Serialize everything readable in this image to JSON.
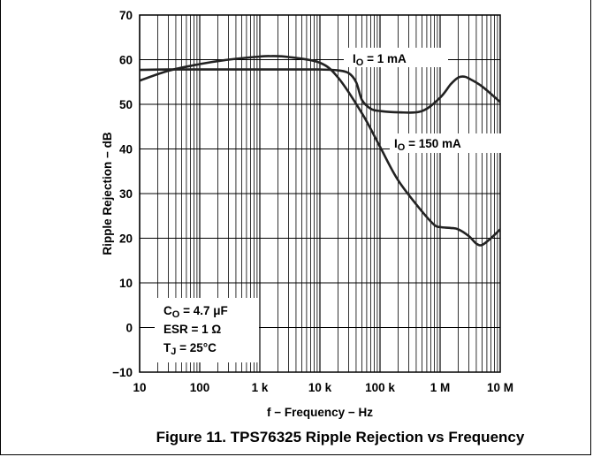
{
  "chart_data": {
    "type": "line",
    "title": "Figure 11. TPS76325 Ripple Rejection vs Frequency",
    "xlabel": "f − Frequency − Hz",
    "ylabel": "Ripple Rejection − dB",
    "xscale": "log",
    "xlim": [
      10,
      10000000
    ],
    "ylim": [
      -10,
      70
    ],
    "grid": true,
    "x_tick_labels": [
      "10",
      "100",
      "1 k",
      "10 k",
      "100 k",
      "1 M",
      "10 M"
    ],
    "y_tick_labels": [
      "−10",
      "0",
      "10",
      "20",
      "30",
      "40",
      "50",
      "60",
      "70"
    ],
    "series": [
      {
        "name": "I_O = 1 mA",
        "label_main": "I",
        "label_sub": "O",
        "label_rest": " = 1 mA",
        "x": [
          10,
          30,
          100,
          300,
          1000,
          3000,
          10000,
          20000,
          30000,
          40000,
          50000,
          70000,
          100000,
          200000,
          500000,
          1000000,
          1500000,
          2000000,
          2500000,
          3000000,
          5000000,
          10000000
        ],
        "y": [
          57.7,
          57.8,
          57.8,
          57.8,
          57.8,
          57.8,
          57.8,
          57.6,
          57.0,
          55.0,
          51.0,
          49.0,
          48.5,
          48.2,
          48.5,
          51.5,
          54.5,
          56.0,
          56.2,
          55.8,
          54.0,
          50.5
        ]
      },
      {
        "name": "I_O = 150 mA",
        "label_main": "I",
        "label_sub": "O",
        "label_rest": " = 150 mA",
        "x": [
          10,
          30,
          100,
          300,
          1000,
          1500,
          3000,
          10000,
          20000,
          50000,
          100000,
          200000,
          500000,
          800000,
          1000000,
          1500000,
          2000000,
          3000000,
          4000000,
          5000000,
          7000000,
          10000000
        ],
        "y": [
          55.3,
          57.5,
          59.0,
          60.0,
          60.7,
          60.8,
          60.6,
          59.3,
          56.0,
          48.0,
          40.5,
          33.0,
          26.0,
          23.0,
          22.5,
          22.3,
          22.0,
          20.5,
          18.8,
          18.5,
          20.0,
          22.0
        ]
      }
    ],
    "annotations": [
      {
        "main": "C",
        "sub": "O",
        "rest": " = 4.7 μF"
      },
      {
        "main": "ESR = 1 Ω",
        "sub": "",
        "rest": ""
      },
      {
        "main": "T",
        "sub": "J",
        "rest": " = 25°C"
      }
    ]
  },
  "colors": {
    "curve": "#222222",
    "grid": "#000000",
    "background": "#ffffff"
  }
}
